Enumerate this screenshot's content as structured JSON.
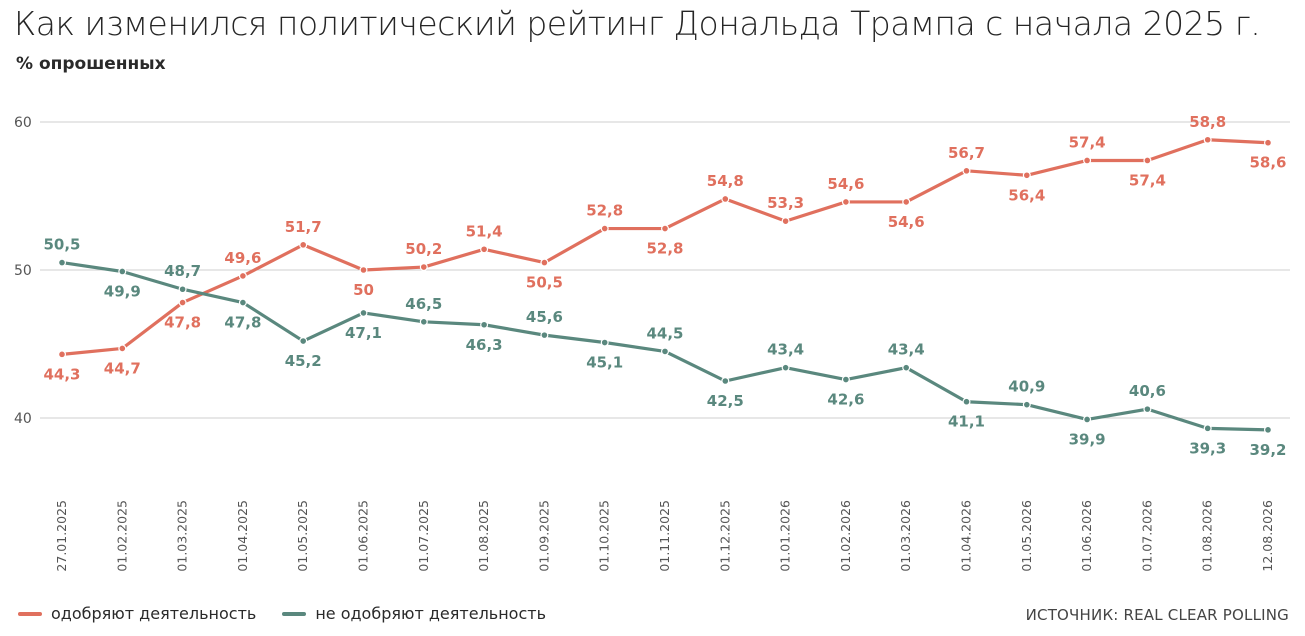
{
  "title": "Как изменился политический рейтинг Дональда Трампа с начала 2025 г.",
  "subtitle": "% опрошенных",
  "source": "ИСТОЧНИК: REAL CLEAR POLLING",
  "colors": {
    "approve": "#e0705e",
    "disapprove": "#5a887e",
    "grid": "#cfcfcf",
    "axis_text": "#555555"
  },
  "chart_data": {
    "type": "line",
    "title": "Как изменился политический рейтинг Дональда Трампа с начала 2025 г.",
    "subtitle": "% опрошенных",
    "ylim": [
      30,
      60
    ],
    "yticks": [
      40,
      50,
      60
    ],
    "grid": true,
    "legend_position": "bottom-left",
    "x": [
      "27.01.2025",
      "01.02.2025",
      "01.03.2025",
      "01.04.2025",
      "01.05.2025",
      "01.06.2025",
      "01.07.2025",
      "01.08.2025",
      "01.09.2025",
      "01.10.2025",
      "01.11.2025",
      "01.12.2025",
      "01.01.2026",
      "01.02.2026",
      "01.03.2026",
      "01.04.2026",
      "01.05.2026",
      "01.06.2026",
      "01.07.2026",
      "01.08.2026",
      "12.08.2026"
    ],
    "series": [
      {
        "name": "одобряют деятельность",
        "key": "approve",
        "values": [
          44.3,
          44.7,
          47.8,
          49.6,
          51.7,
          50,
          50.2,
          51.4,
          50.5,
          52.8,
          52.8,
          54.8,
          53.3,
          54.6,
          54.6,
          56.7,
          56.4,
          57.4,
          57.4,
          58.8,
          58.6
        ],
        "labels": [
          "44,3",
          "44,7",
          "47,8",
          "49,6",
          "51,7",
          "50",
          "50,2",
          "51,4",
          "50,5",
          "52,8",
          "52,8",
          "54,8",
          "53,3",
          "54,6",
          "54,6",
          "56,7",
          "56,4",
          "57,4",
          "57,4",
          "58,8",
          "58,6"
        ]
      },
      {
        "name": "не одобряют деятельность",
        "key": "disapprove",
        "values": [
          50.5,
          49.9,
          48.7,
          47.8,
          45.2,
          47.1,
          46.5,
          46.3,
          45.6,
          45.1,
          44.5,
          42.5,
          43.4,
          42.6,
          43.4,
          41.1,
          40.9,
          39.9,
          40.6,
          39.3,
          39.2
        ],
        "labels": [
          "50,5",
          "49,9",
          "48,7",
          "47,8",
          "45,2",
          "47,1",
          "46,5",
          "46,3",
          "45,6",
          "45,1",
          "44,5",
          "42,5",
          "43,4",
          "42,6",
          "43,4",
          "41,1",
          "40,9",
          "39,9",
          "40,6",
          "39,3",
          "39,2"
        ]
      }
    ]
  }
}
